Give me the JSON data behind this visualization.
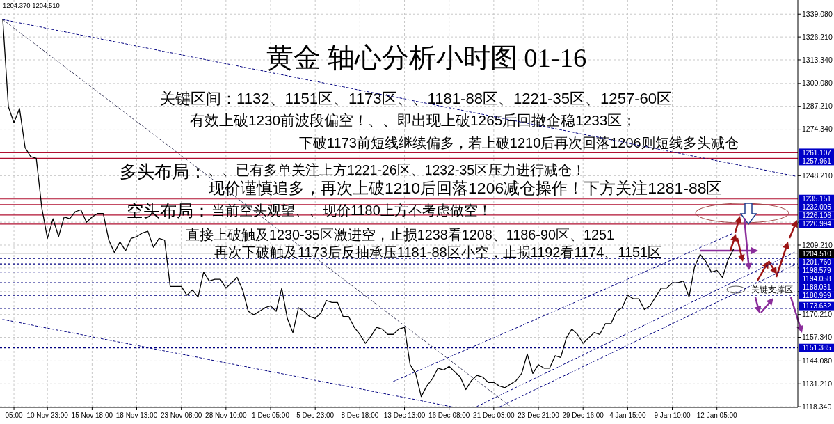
{
  "chart_data": {
    "type": "line",
    "title": "黄金 轴心分析小时图 01-16",
    "categories": [
      null,
      null,
      "05:00",
      null,
      null,
      null,
      null,
      null,
      "10 Nov 23:00",
      null,
      null,
      null,
      null,
      null,
      null,
      null,
      "15 Nov 18:00",
      null,
      null,
      null,
      null,
      null,
      null,
      null,
      "18 Nov 13:00",
      null,
      null,
      null,
      null,
      null,
      null,
      null,
      "23 Nov 08:00",
      null,
      null,
      null,
      null,
      null,
      null,
      null,
      "28 Nov 10:00",
      null,
      null,
      null,
      null,
      null,
      null,
      null,
      "1 Dec 05:00",
      null,
      null,
      null,
      null,
      null,
      null,
      null,
      "5 Dec 23:00",
      null,
      null,
      null,
      null,
      null,
      null,
      null,
      "8 Dec 18:00",
      null,
      null,
      null,
      null,
      null,
      null,
      null,
      "13 Dec 13:00",
      null,
      null,
      null,
      null,
      null,
      null,
      null,
      "16 Dec 08:00",
      null,
      null,
      null,
      null,
      null,
      null,
      null,
      "21 Dec 03:00",
      null,
      null,
      null,
      null,
      null,
      null,
      null,
      "23 Dec 21:00",
      null,
      null,
      null,
      null,
      null,
      null,
      null,
      "29 Dec 16:00",
      null,
      null,
      null,
      null,
      null,
      null,
      null,
      "4 Jan 15:00",
      null,
      null,
      null,
      null,
      null,
      null,
      null,
      "9 Jan 10:00",
      null,
      null,
      null,
      null,
      null,
      null,
      null,
      "12 Jan 05:00",
      null,
      null,
      null,
      null,
      null,
      null,
      null,
      null,
      null,
      null,
      null,
      null,
      null,
      null
    ],
    "series": [
      {
        "color": "#000000",
        "values": [
          1336,
          1287,
          1278,
          1286,
          1264,
          1259,
          1258,
          1230,
          1213,
          1224,
          1214,
          1225,
          1224,
          1228,
          1229,
          1222,
          1225,
          1227,
          1227,
          1212,
          1205,
          1211,
          1206,
          1213,
          1214,
          1216,
          1217,
          1208,
          1213,
          1212,
          1186,
          1186,
          1186,
          1181,
          1184,
          1180,
          1194,
          1189,
          1190,
          1190,
          1185,
          1188,
          1191,
          1184,
          1172,
          1170,
          1172,
          1174,
          1175,
          1172,
          1185,
          1168,
          1160,
          1174,
          1172,
          1169,
          1168,
          1171,
          1178,
          1177,
          1177,
          1169,
          1169,
          1163,
          1159,
          1154,
          1158,
          1163,
          1162,
          1159,
          1159,
          1162,
          1163,
          1142,
          1137,
          1124,
          1130,
          1134,
          1140,
          1139,
          1141,
          1138,
          1135,
          1128,
          1133,
          1136,
          1135,
          1132,
          1132,
          1130,
          1129,
          1131,
          1133,
          1137,
          1148,
          1137,
          1142,
          1140,
          1140,
          1147,
          1146,
          1157,
          1162,
          1159,
          1154,
          1157,
          1160,
          1159,
          1165,
          1165,
          1172,
          1174,
          1181,
          1179,
          1179,
          1173,
          1175,
          1180,
          1185,
          1185,
          1188,
          1188,
          1189,
          1180,
          1197,
          1204,
          1200,
          1194,
          1195,
          1191,
          1201,
          1207,
          null,
          null,
          null,
          null,
          null,
          null,
          null,
          null,
          null,
          null,
          null
        ]
      },
      {
        "type": "line",
        "color": "#000080",
        "line_style": "dashed",
        "values": [
          1336.0,
          1335.4,
          1334.8,
          1334.1,
          1333.5,
          1332.9,
          1332.3,
          1331.7,
          1331.0,
          1330.4,
          1329.8,
          1329.2,
          1328.6,
          1327.9,
          1327.3,
          1326.7,
          1326.1,
          1325.5,
          1324.8,
          1324.2,
          1323.6,
          1323.0,
          1322.4,
          1321.7,
          1321.1,
          1320.5,
          1319.9,
          1319.3,
          1318.6,
          1318.0,
          1317.4,
          1316.8,
          1316.2,
          1315.5,
          1314.9,
          1314.3,
          1313.7,
          1313.1,
          1312.4,
          1311.8,
          1311.2,
          1310.6,
          1310.0,
          1309.3,
          1308.7,
          1308.1,
          1307.5,
          1306.9,
          1306.2,
          1305.6,
          1305.0,
          1304.4,
          1303.8,
          1303.1,
          1302.5,
          1301.9,
          1301.3,
          1300.7,
          1300.0,
          1299.4,
          1298.8,
          1298.2,
          1297.6,
          1296.9,
          1296.3,
          1295.7,
          1295.1,
          1294.5,
          1293.8,
          1293.2,
          1292.6,
          1292.0,
          1291.4,
          1290.7,
          1290.1,
          1289.5,
          1288.9,
          1288.3,
          1287.6,
          1287.0,
          1286.4,
          1285.8,
          1285.2,
          1284.5,
          1283.9,
          1283.3,
          1282.7,
          1282.1,
          1281.4,
          1280.8,
          1280.2,
          1279.6,
          1279.0,
          1278.3,
          1277.7,
          1277.1,
          1276.5,
          1275.9,
          1275.2,
          1274.6,
          1274.0,
          1273.4,
          1272.8,
          1272.1,
          1271.5,
          1270.9,
          1270.3,
          1269.7,
          1269.0,
          1268.4,
          1267.8,
          1267.2,
          1266.6,
          1265.9,
          1265.3,
          1264.7,
          1264.1,
          1263.5,
          1262.8,
          1262.2,
          1261.6,
          1261.0,
          1260.4,
          1259.7,
          1259.1,
          1258.5,
          1257.9,
          1257.3,
          1256.6,
          1256.0,
          1255.4,
          1254.8,
          1254.2,
          1253.5,
          1252.9,
          1252.3,
          1251.7,
          1251.1,
          1250.4,
          1249.8,
          1249.2,
          1248.6,
          1248.0
        ]
      },
      {
        "type": "line",
        "color": "#404060",
        "line_style": "dashed",
        "values": [
          1336.0,
          1333.6,
          1331.2,
          1328.8,
          1326.4,
          1324.1,
          1321.7,
          1319.3,
          1316.9,
          1314.5,
          1312.1,
          1309.7,
          1307.3,
          1304.9,
          1302.5,
          1300.2,
          1297.8,
          1295.4,
          1293.0,
          1290.6,
          1288.2,
          1285.8,
          1283.4,
          1281.0,
          1278.6,
          1276.3,
          1273.9,
          1271.5,
          1269.1,
          1266.7,
          1264.3,
          1261.9,
          1259.5,
          1257.1,
          1254.7,
          1252.4,
          1250.0,
          1247.6,
          1245.2,
          1242.8,
          1240.4,
          1238.0,
          1235.6,
          1233.2,
          1230.8,
          1228.5,
          1226.1,
          1223.7,
          1221.3,
          1218.9,
          1216.5,
          1214.1,
          1211.7,
          1209.3,
          1206.9,
          1204.6,
          1202.2,
          1199.8,
          1197.4,
          1195.0,
          1192.6,
          1190.2,
          1187.8,
          1185.4,
          1183.0,
          1180.7,
          1178.3,
          1175.9,
          1173.5,
          1171.1,
          1168.7,
          1166.3,
          1163.9,
          1161.5,
          1159.1,
          1156.8,
          1154.4,
          1152.0,
          1149.6,
          1147.2,
          1144.8,
          1142.4,
          1140.0,
          1137.6,
          1135.2,
          1132.9,
          1130.5,
          1128.1,
          1125.7,
          1123.3,
          1120.9,
          1118.5,
          null,
          null,
          null,
          null,
          null,
          null,
          null,
          null,
          null,
          null,
          null,
          null,
          null,
          null,
          null,
          null,
          null,
          null,
          null,
          null,
          null,
          null,
          null,
          null,
          null,
          null,
          null,
          null,
          null,
          null,
          null,
          null,
          null,
          null,
          null,
          null,
          null,
          null,
          null,
          null,
          null,
          null,
          null,
          null,
          null,
          null,
          null,
          null,
          null,
          null,
          null
        ]
      },
      {
        "type": "line",
        "color": "#000080",
        "line_style": "dashed",
        "values": [
          1167.4,
          1166.8,
          1166.2,
          1165.6,
          1165.0,
          1164.4,
          1163.7,
          1163.1,
          1162.5,
          1161.9,
          1161.3,
          1160.7,
          1160.1,
          1159.5,
          1158.9,
          1158.3,
          1157.6,
          1157.0,
          1156.4,
          1155.8,
          1155.2,
          1154.6,
          1154.0,
          1153.4,
          1152.8,
          1152.2,
          1151.5,
          1150.9,
          1150.3,
          1149.7,
          1149.1,
          1148.5,
          1147.9,
          1147.3,
          1146.7,
          1146.1,
          1145.4,
          1144.8,
          1144.2,
          1143.6,
          1143.0,
          1142.4,
          1141.8,
          1141.2,
          1140.6,
          1140.0,
          1139.3,
          1138.7,
          1138.1,
          1137.5,
          1136.9,
          1136.3,
          1135.7,
          1135.1,
          1134.5,
          1133.9,
          1133.2,
          1132.6,
          1132.0,
          1131.4,
          1130.8,
          1130.2,
          1129.6,
          1129.0,
          1128.4,
          1127.8,
          1127.1,
          1126.5,
          1125.9,
          1125.3,
          1124.7,
          1124.1,
          1123.5,
          1122.9,
          1122.3,
          1121.7,
          1121.0,
          1120.4,
          1119.8,
          1119.2,
          1118.6,
          1118.0,
          null,
          null,
          null,
          null,
          null,
          null,
          null,
          null,
          null,
          null,
          null,
          null,
          null,
          null,
          null,
          null,
          null,
          null,
          null,
          null,
          null,
          null,
          null,
          null,
          null,
          null,
          null,
          null,
          null,
          null,
          null,
          null,
          null,
          null,
          null,
          null,
          null,
          null,
          null,
          null,
          null,
          null,
          null,
          null,
          null,
          null,
          null,
          null,
          null,
          null,
          null,
          null,
          null,
          null,
          null,
          null,
          null,
          null,
          null,
          null,
          null
        ]
      },
      {
        "type": "line",
        "color": "#000080",
        "line_style": "dashed",
        "values": [
          null,
          null,
          null,
          null,
          null,
          null,
          null,
          null,
          null,
          null,
          null,
          null,
          null,
          null,
          null,
          null,
          null,
          null,
          null,
          null,
          null,
          null,
          null,
          null,
          null,
          null,
          null,
          null,
          null,
          null,
          null,
          null,
          null,
          null,
          null,
          null,
          null,
          null,
          null,
          null,
          null,
          null,
          null,
          null,
          null,
          null,
          null,
          null,
          null,
          null,
          null,
          null,
          null,
          null,
          null,
          null,
          null,
          null,
          null,
          null,
          null,
          null,
          null,
          null,
          null,
          null,
          null,
          null,
          null,
          null,
          1132.5,
          1133.9,
          1135.2,
          1136.6,
          1138.0,
          1139.3,
          1140.7,
          1142.1,
          1143.5,
          1144.8,
          1146.2,
          1147.6,
          1148.9,
          1150.3,
          1151.7,
          1153.0,
          1154.4,
          1155.8,
          1157.1,
          1158.5,
          1159.9,
          1161.2,
          1162.6,
          1164.0,
          1165.4,
          1166.7,
          1168.1,
          1169.5,
          1170.8,
          1172.2,
          1173.6,
          1174.9,
          1176.3,
          1177.7,
          1179.0,
          1180.4,
          1181.8,
          1183.2,
          1184.5,
          1185.9,
          1187.3,
          1188.6,
          1190.0,
          1191.4,
          1192.7,
          1194.1,
          1195.5,
          1196.8,
          1198.2,
          1199.6,
          1201.0,
          1202.3,
          1203.7,
          1205.1,
          1206.4,
          1207.8,
          1209.2,
          1210.5,
          1211.9,
          1213.3,
          1214.6,
          1216.0,
          null,
          null,
          null,
          null,
          null,
          null,
          null,
          null,
          null,
          null,
          null
        ]
      },
      {
        "type": "line",
        "color": "#000080",
        "line_style": "dashed",
        "values": [
          null,
          null,
          null,
          null,
          null,
          null,
          null,
          null,
          null,
          null,
          null,
          null,
          null,
          null,
          null,
          null,
          null,
          null,
          null,
          null,
          null,
          null,
          null,
          null,
          null,
          null,
          null,
          null,
          null,
          null,
          null,
          null,
          null,
          null,
          null,
          null,
          null,
          null,
          null,
          null,
          null,
          null,
          null,
          null,
          null,
          null,
          null,
          null,
          null,
          null,
          null,
          null,
          null,
          null,
          null,
          null,
          null,
          null,
          null,
          null,
          null,
          null,
          null,
          null,
          null,
          null,
          null,
          null,
          null,
          null,
          null,
          null,
          null,
          null,
          null,
          null,
          null,
          null,
          null,
          null,
          null,
          null,
          null,
          null,
          null,
          1118.5,
          1120.0,
          1121.5,
          1123.1,
          1124.6,
          1126.1,
          1127.6,
          1129.2,
          1130.7,
          1132.2,
          1133.7,
          1135.2,
          1136.8,
          1138.3,
          1139.8,
          1141.3,
          1142.9,
          1144.4,
          1145.9,
          1147.4,
          1149.0,
          1150.5,
          1152.0,
          1153.5,
          1155.0,
          1156.6,
          1158.1,
          1159.6,
          1161.1,
          1162.7,
          1164.2,
          1165.7,
          1167.2,
          1168.7,
          1170.3,
          1171.8,
          1173.3,
          1174.8,
          1176.4,
          1177.9,
          1179.4,
          1180.9,
          1182.4,
          1184.0,
          1185.5,
          1187.0,
          1188.5,
          1190.1,
          1191.6,
          1193.1,
          1194.6,
          1196.2,
          1197.7,
          1199.2,
          1200.7,
          1202.2,
          1203.8,
          1205.3
        ]
      },
      {
        "type": "line",
        "color": "#000080",
        "line_style": "dashed",
        "values": [
          null,
          null,
          null,
          null,
          null,
          null,
          null,
          null,
          null,
          null,
          null,
          null,
          null,
          null,
          null,
          null,
          null,
          null,
          null,
          null,
          null,
          null,
          null,
          null,
          null,
          null,
          null,
          null,
          null,
          null,
          null,
          null,
          null,
          null,
          null,
          null,
          null,
          null,
          null,
          null,
          null,
          null,
          null,
          null,
          null,
          null,
          null,
          null,
          null,
          null,
          null,
          null,
          null,
          null,
          null,
          null,
          null,
          null,
          null,
          null,
          null,
          null,
          null,
          null,
          null,
          null,
          null,
          null,
          null,
          null,
          null,
          null,
          null,
          null,
          null,
          null,
          null,
          null,
          null,
          null,
          null,
          null,
          null,
          null,
          null,
          null,
          null,
          null,
          null,
          1118.2,
          1119.7,
          1121.2,
          1122.7,
          1124.2,
          1125.8,
          1127.3,
          1128.8,
          1130.3,
          1131.8,
          1133.3,
          1134.8,
          1136.3,
          1137.8,
          1139.3,
          1140.9,
          1142.4,
          1143.9,
          1145.4,
          1146.9,
          1148.4,
          1149.9,
          1151.4,
          1152.9,
          1154.4,
          1156.0,
          1157.5,
          1159.0,
          1160.5,
          1162.0,
          1163.5,
          1165.0,
          1166.5,
          1168.0,
          1169.5,
          1171.1,
          1172.6,
          1174.1,
          1175.6,
          1177.1,
          1178.6,
          1180.1,
          1181.6,
          1183.1,
          1184.6,
          1186.2,
          1187.7,
          1189.2,
          1190.7,
          1192.2,
          1193.7,
          1195.2,
          1196.7,
          1198.2
        ]
      }
    ],
    "ylim": [
      1118,
      1347
    ],
    "yticks": [
      {
        "value": 1339.08,
        "label": "1339.080"
      },
      {
        "value": 1326.21,
        "label": "1326.210"
      },
      {
        "value": 1313.34,
        "label": "1313.340"
      },
      {
        "value": 1300.08,
        "label": "1300.080"
      },
      {
        "value": 1287.21,
        "label": "1287.210"
      },
      {
        "value": 1274.34,
        "label": "1274.340"
      },
      {
        "value": 1248.21,
        "label": "1248.210"
      },
      {
        "value": 1222.08,
        "label": null
      },
      {
        "value": 1209.21,
        "label": "1209.210"
      },
      {
        "value": 1196.34,
        "label": null
      },
      {
        "value": 1183.08,
        "label": null
      },
      {
        "value": 1170.21,
        "label": "1170.210"
      },
      {
        "value": 1157.34,
        "label": "1157.340"
      },
      {
        "value": 1144.08,
        "label": "1144.080"
      },
      {
        "value": 1131.21,
        "label": "1131.210"
      },
      {
        "value": 1118.34,
        "label": "1118.340"
      }
    ],
    "grid": true,
    "ref_lines": [
      {
        "axis": "y",
        "value": 1261.107,
        "label": "1261.107",
        "color": "#b01030",
        "line_style": "solid"
      },
      {
        "axis": "y",
        "value": 1257.961,
        "label": "1257.961",
        "color": "#b01030",
        "line_style": "solid"
      },
      {
        "axis": "y",
        "value": 1235.151,
        "label": "1235.151",
        "color": "#b01030",
        "line_style": "solid"
      },
      {
        "axis": "y",
        "value": 1232.005,
        "label": "1232.005",
        "color": "#b01030",
        "line_style": "solid"
      },
      {
        "axis": "y",
        "value": 1226.106,
        "label": "1226.106",
        "color": "#b01030",
        "line_style": "solid"
      },
      {
        "axis": "y",
        "value": 1220.994,
        "label": "1220.994",
        "color": "#b01030",
        "line_style": "solid"
      },
      {
        "axis": "y",
        "value": 1204.51,
        "label": "1204.510",
        "color": "#c0c0c0",
        "line_style": "solid"
      },
      {
        "axis": "y",
        "value": 1201.76,
        "label": "1201.760",
        "color": "#000080",
        "line_style": "dashed"
      },
      {
        "axis": "y",
        "value": 1198.579,
        "label": "1198.579",
        "color": "#000080",
        "line_style": "dashed"
      },
      {
        "axis": "y",
        "value": 1194.058,
        "label": "1194.058",
        "color": "#000080",
        "line_style": "dashed"
      },
      {
        "axis": "y",
        "value": 1188.031,
        "label": "1188.031",
        "color": "#000080",
        "line_style": "dashed"
      },
      {
        "axis": "y",
        "value": 1180.999,
        "label": "1180.999",
        "color": "#000080",
        "line_style": "dashed"
      },
      {
        "axis": "y",
        "value": 1173.632,
        "label": "1173.632",
        "color": "#000080",
        "line_style": "dashed"
      },
      {
        "axis": "y",
        "value": 1151.385,
        "label": "1151.385",
        "color": "#000080",
        "line_style": "dashed"
      }
    ],
    "annotations": [
      "1204.370 1204.510",
      "关键区间：1132、1151区、1173区、、1181-88区、1221-35区、1257-60区",
      "有效上破1230前波段偏空！、、即出现上破1265后回撤企稳1233区；",
      "下破1173前短线继续偏多，若上破1210后再次回落1206则短线多头减仓",
      "多头布局：",
      "、、已有多单关注上方1221-26区、1232-35区压力进行减仓！",
      "现价谨慎追多，再次上破1210后回落1206减仓操作！下方关注1281-88区",
      "空头布局：",
      "当前空头观望、、现价1180上方不考虑做空！",
      "直接上破触及1230-35区激进空，止损1238看1208、1186-90区、1251",
      "再次下破触及1173后反抽承压1181-88区小空，止损1192看1174、1151区",
      "关键支撑区"
    ]
  }
}
